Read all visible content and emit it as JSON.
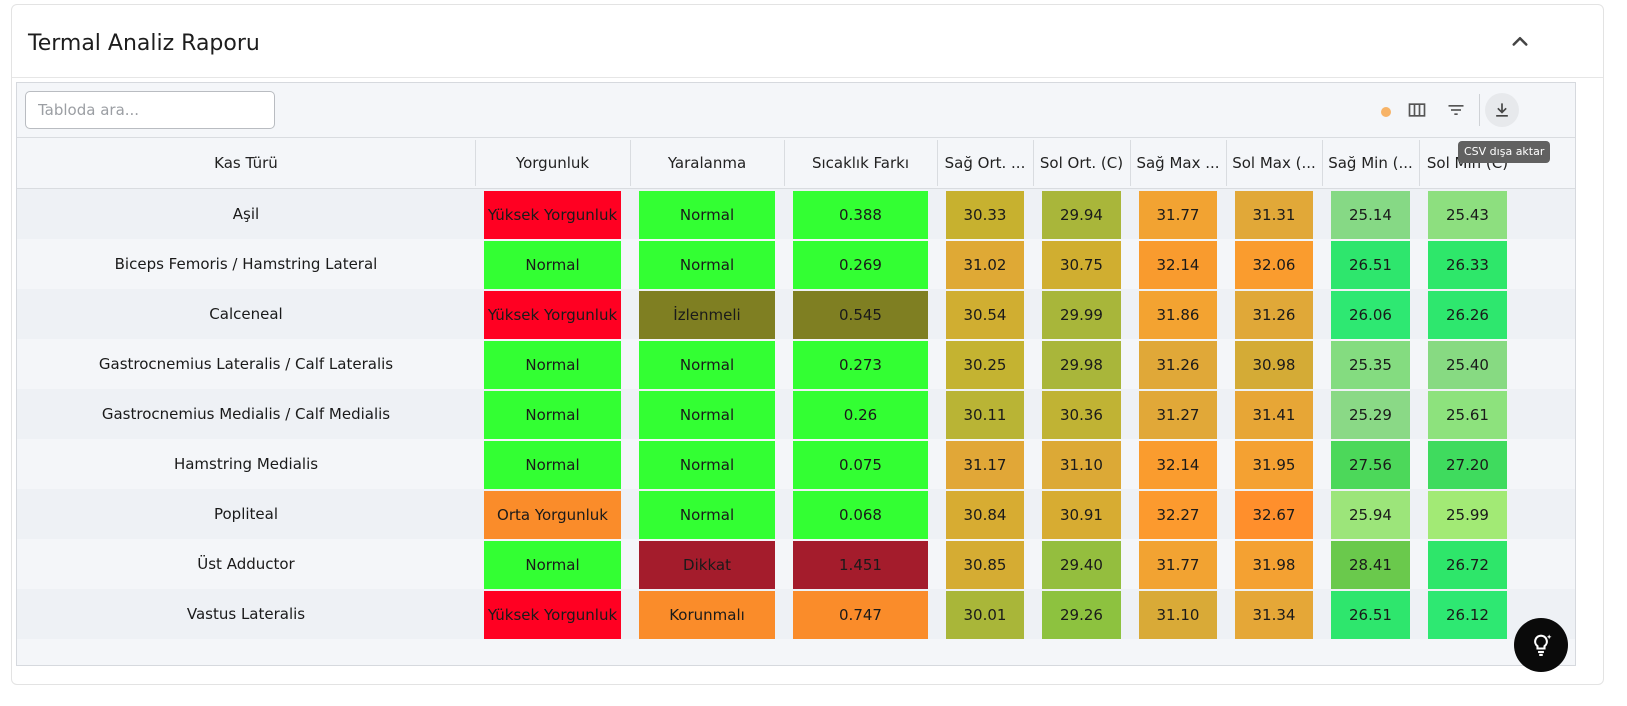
{
  "header": {
    "title": "Termal Analiz Raporu"
  },
  "toolbar": {
    "search_placeholder": "Tabloda ara...",
    "export_tooltip": "CSV dışa aktar"
  },
  "columns": [
    "Kas Türü",
    "Yorgunluk",
    "Yaralanma",
    "Sıcaklık Farkı",
    "Sağ Ort. (C)",
    "Sol Ort. (C)",
    "Sağ Max (C)",
    "Sol Max (C)",
    "Sağ Min (C)",
    "Sol Min (C)"
  ],
  "column_display": [
    "Kas Türü",
    "Yorgunluk",
    "Yaralanma",
    "Sıcaklık Farkı",
    "Sağ Ort. ...",
    "Sol Ort. (C)",
    "Sağ Max ...",
    "Sol Max (...",
    "Sağ Min (...",
    "Sol Min (C)"
  ],
  "rows": [
    {
      "kas": "Aşil",
      "yorgunluk": "Yüksek Yorgunluk",
      "yaralanma": "Normal",
      "fark": "0.388",
      "vals": [
        "30.33",
        "29.94",
        "31.77",
        "31.31",
        "25.14",
        "25.43"
      ],
      "colors": [
        "#ff0022",
        "#33ff33",
        "#33ff33",
        "#c7b12f",
        "#a9b63a",
        "#f2a332",
        "#e1a838",
        "#86d985",
        "#8ddf7f"
      ]
    },
    {
      "kas": "Biceps Femoris / Hamstring Lateral",
      "yorgunluk": "Normal",
      "yaralanma": "Normal",
      "fark": "0.269",
      "vals": [
        "31.02",
        "30.75",
        "32.14",
        "32.06",
        "26.51",
        "26.33"
      ],
      "colors": [
        "#33ff33",
        "#33ff33",
        "#33ff33",
        "#dfa935",
        "#d0ae30",
        "#f99b2e",
        "#fa9c2e",
        "#2ee66d",
        "#2ee76a"
      ]
    },
    {
      "kas": "Calceneal",
      "yorgunluk": "Yüksek Yorgunluk",
      "yaralanma": "İzlenmeli",
      "fark": "0.545",
      "vals": [
        "30.54",
        "29.99",
        "31.86",
        "31.26",
        "26.06",
        "26.26"
      ],
      "colors": [
        "#ff0022",
        "#7f7f22",
        "#7f7f22",
        "#d0ae31",
        "#a8b63a",
        "#f3a331",
        "#e0a838",
        "#2ee872",
        "#2ee76e"
      ]
    },
    {
      "kas": "Gastrocnemius Lateralis / Calf Lateralis",
      "yorgunluk": "Normal",
      "yaralanma": "Normal",
      "fark": "0.273",
      "vals": [
        "30.25",
        "29.98",
        "31.26",
        "30.98",
        "25.35",
        "25.40"
      ],
      "colors": [
        "#33ff33",
        "#33ff33",
        "#33ff33",
        "#c4b331",
        "#a9b63a",
        "#e0a838",
        "#d4ab36",
        "#84dc80",
        "#87da82"
      ]
    },
    {
      "kas": "Gastrocnemius Medialis / Calf Medialis",
      "yorgunluk": "Normal",
      "yaralanma": "Normal",
      "fark": "0.26",
      "vals": [
        "30.11",
        "30.36",
        "31.27",
        "31.41",
        "25.29",
        "25.61"
      ],
      "colors": [
        "#33ff33",
        "#33ff33",
        "#33ff33",
        "#b9b435",
        "#c0b334",
        "#e1a838",
        "#e7a636",
        "#8ad986",
        "#8de27d"
      ]
    },
    {
      "kas": "Hamstring Medialis",
      "yorgunluk": "Normal",
      "yaralanma": "Normal",
      "fark": "0.075",
      "vals": [
        "31.17",
        "31.10",
        "32.14",
        "31.95",
        "27.56",
        "27.20"
      ],
      "colors": [
        "#33ff33",
        "#33ff33",
        "#33ff33",
        "#e1a737",
        "#dca936",
        "#fa9c2e",
        "#f4a132",
        "#4cd85a",
        "#3fdb5e"
      ]
    },
    {
      "kas": "Popliteal",
      "yorgunluk": "Orta Yorgunluk",
      "yaralanma": "Normal",
      "fark": "0.068",
      "vals": [
        "30.84",
        "30.91",
        "32.27",
        "32.67",
        "25.94",
        "25.99"
      ],
      "colors": [
        "#fa8c2a",
        "#33ff33",
        "#33ff33",
        "#d7ac32",
        "#d7ac32",
        "#fc9a2e",
        "#ff8f2c",
        "#9ce57a",
        "#a2ea75"
      ]
    },
    {
      "kas": "Üst Adductor",
      "yorgunluk": "Normal",
      "yaralanma": "Dikkat",
      "fark": "1.451",
      "vals": [
        "30.85",
        "29.40",
        "31.77",
        "31.98",
        "28.41",
        "26.72"
      ],
      "colors": [
        "#33ff33",
        "#a41c2c",
        "#a41c2c",
        "#d5ac33",
        "#94be3e",
        "#f2a332",
        "#f4a132",
        "#6ac94c",
        "#2ee66a"
      ]
    },
    {
      "kas": "Vastus Lateralis",
      "yorgunluk": "Yüksek Yorgunluk",
      "yaralanma": "Korunmalı",
      "fark": "0.747",
      "vals": [
        "30.01",
        "29.26",
        "31.10",
        "31.34",
        "26.51",
        "26.12"
      ],
      "colors": [
        "#ff0022",
        "#fa8c2a",
        "#fa8c2a",
        "#a9b639",
        "#8dc23f",
        "#d9aa37",
        "#e5a737",
        "#2ee66d",
        "#2ee872"
      ]
    }
  ]
}
